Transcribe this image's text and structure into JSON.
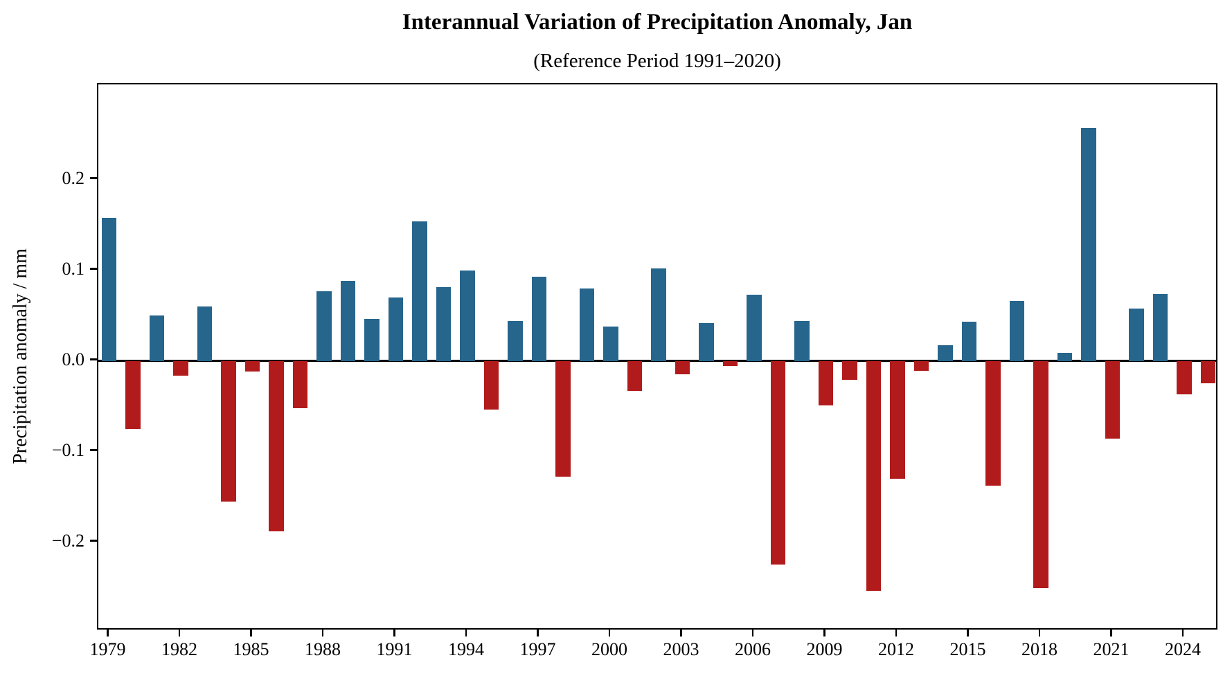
{
  "chart_data": {
    "type": "bar",
    "title": "Interannual Variation of Precipitation Anomaly, Jan",
    "subtitle": "(Reference Period 1991–2020)",
    "xlabel": "",
    "ylabel": "Precipitation anomaly / mm",
    "x": [
      1979,
      1980,
      1981,
      1982,
      1983,
      1984,
      1985,
      1986,
      1987,
      1988,
      1989,
      1990,
      1991,
      1992,
      1993,
      1994,
      1995,
      1996,
      1997,
      1998,
      1999,
      2000,
      2001,
      2002,
      2003,
      2004,
      2005,
      2006,
      2007,
      2008,
      2009,
      2010,
      2011,
      2012,
      2013,
      2014,
      2015,
      2016,
      2017,
      2018,
      2019,
      2020,
      2021,
      2022,
      2023,
      2024,
      2025
    ],
    "values": [
      0.158,
      -0.075,
      0.05,
      -0.016,
      0.06,
      -0.155,
      -0.012,
      -0.188,
      -0.052,
      0.077,
      0.088,
      0.046,
      0.07,
      0.154,
      0.081,
      0.1,
      -0.054,
      0.044,
      0.093,
      -0.128,
      0.08,
      0.038,
      -0.033,
      0.102,
      -0.015,
      0.042,
      -0.006,
      0.073,
      -0.225,
      0.044,
      -0.049,
      -0.021,
      -0.254,
      -0.13,
      -0.011,
      0.017,
      0.043,
      -0.138,
      0.066,
      -0.251,
      0.009,
      0.257,
      -0.086,
      0.058,
      0.074,
      -0.037,
      -0.025
    ],
    "positive_color": "#26658C",
    "negative_color": "#B21B1B",
    "axis_color": "#000000",
    "xlim": [
      1978.55,
      2025.45
    ],
    "ylim": [
      -0.298,
      0.305
    ],
    "yticks": [
      0.2,
      0.1,
      0.0,
      -0.1,
      -0.2
    ],
    "ytick_labels": [
      "0.2",
      "0.1",
      "0.0",
      "−0.1",
      "−0.2"
    ],
    "xticks": [
      1979,
      1982,
      1985,
      1988,
      1991,
      1994,
      1997,
      2000,
      2003,
      2006,
      2009,
      2012,
      2015,
      2018,
      2021,
      2024
    ],
    "xtick_labels": [
      "1979",
      "1982",
      "1985",
      "1988",
      "1991",
      "1994",
      "1997",
      "2000",
      "2003",
      "2006",
      "2009",
      "2012",
      "2015",
      "2018",
      "2021",
      "2024"
    ],
    "grid": false,
    "legend": null,
    "bar_width_years": 0.62
  }
}
